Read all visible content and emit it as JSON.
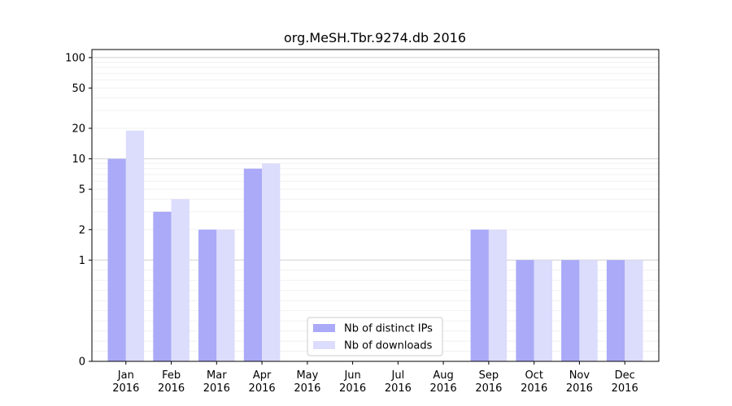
{
  "chart_data": {
    "type": "bar",
    "title": "org.MeSH.Tbr.9274.db 2016",
    "xlabel": "",
    "ylabel": "",
    "categories": [
      "Jan",
      "Feb",
      "Mar",
      "Apr",
      "May",
      "Jun",
      "Jul",
      "Aug",
      "Sep",
      "Oct",
      "Nov",
      "Dec"
    ],
    "category_sublabel": "2016",
    "series": [
      {
        "name": "Nb of distinct IPs",
        "values": [
          10,
          3,
          2,
          8,
          0,
          0,
          0,
          0,
          2,
          1,
          1,
          1
        ],
        "color": "#aaaaf8"
      },
      {
        "name": "Nb of downloads",
        "values": [
          19,
          4,
          2,
          9,
          0,
          0,
          0,
          0,
          2,
          1,
          1,
          1
        ],
        "color": "#dcdcfc"
      }
    ],
    "y_scale": "symlog",
    "ylim": [
      0,
      120
    ],
    "y_ticks": [
      0,
      1,
      2,
      5,
      10,
      20,
      50,
      100
    ],
    "grid": true,
    "legend_position": "lower-center"
  }
}
